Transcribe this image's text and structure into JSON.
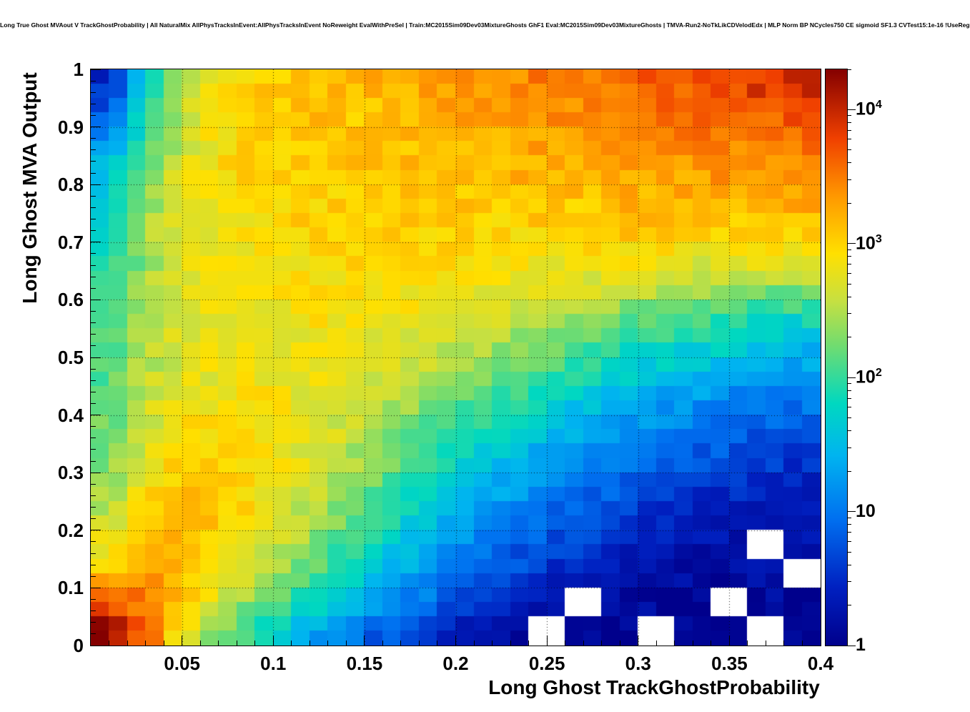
{
  "chart_data": {
    "type": "heatmap",
    "title": "Long True Ghost MVAout V TrackGhostProbability | All NaturalMix AllPhysTracksInEvent:AllPhysTracksInEvent NoReweight EvalWithPreSel | Train:MC2015Sim09Dev03MixtureGhosts GhF1 Eval:MC2015Sim09Dev03MixtureGhosts | TMVA-Run2-NoTkLikCDVelodEdx | MLP Norm BP NCycles750 CE sigmoid SF1.3 CVTest15:1e-16 !UseReg",
    "xlabel": "Long Ghost TrackGhostProbability",
    "ylabel": "Long Ghost MVA Output",
    "xlim": [
      0,
      0.4
    ],
    "ylim": [
      0,
      1
    ],
    "zlim": [
      1,
      20000
    ],
    "zscale": "log",
    "grid_on": true,
    "x_ticks": [
      {
        "value": 0.05,
        "label": "0.05"
      },
      {
        "value": 0.1,
        "label": "0.1"
      },
      {
        "value": 0.15,
        "label": "0.15"
      },
      {
        "value": 0.2,
        "label": "0.2"
      },
      {
        "value": 0.25,
        "label": "0.25"
      },
      {
        "value": 0.3,
        "label": "0.3"
      },
      {
        "value": 0.35,
        "label": "0.35"
      },
      {
        "value": 0.4,
        "label": "0.4"
      }
    ],
    "y_ticks": [
      {
        "value": 0.0,
        "label": "0"
      },
      {
        "value": 0.1,
        "label": "0.1"
      },
      {
        "value": 0.2,
        "label": "0.2"
      },
      {
        "value": 0.3,
        "label": "0.3"
      },
      {
        "value": 0.4,
        "label": "0.4"
      },
      {
        "value": 0.5,
        "label": "0.5"
      },
      {
        "value": 0.6,
        "label": "0.6"
      },
      {
        "value": 0.7,
        "label": "0.7"
      },
      {
        "value": 0.8,
        "label": "0.8"
      },
      {
        "value": 0.9,
        "label": "0.9"
      },
      {
        "value": 1.0,
        "label": "1"
      }
    ],
    "z_ticks": [
      {
        "value": 1,
        "label": "1",
        "sup": ""
      },
      {
        "value": 10,
        "label": "10",
        "sup": ""
      },
      {
        "value": 100,
        "label": "10",
        "sup": "2"
      },
      {
        "value": 1000,
        "label": "10",
        "sup": "3"
      },
      {
        "value": 10000,
        "label": "10",
        "sup": "4"
      }
    ],
    "palette_stops": [
      [
        0.0,
        "#00008c"
      ],
      [
        0.1,
        "#0020c0"
      ],
      [
        0.22,
        "#0070f0"
      ],
      [
        0.33,
        "#00b4f0"
      ],
      [
        0.42,
        "#00d8c0"
      ],
      [
        0.52,
        "#70dc70"
      ],
      [
        0.6,
        "#c8e040"
      ],
      [
        0.68,
        "#ffe000"
      ],
      [
        0.78,
        "#ff9800"
      ],
      [
        0.88,
        "#f04000"
      ],
      [
        1.0,
        "#840000"
      ]
    ],
    "grid_cols": 20,
    "grid_rows": 20,
    "value_note": "log10 of bin count per cell; rows ordered top (y=1) to bottom (y=0); null = empty (white) bin",
    "log10_counts_rows_top_to_bottom": [
      [
        0.5,
        1.6,
        2.4,
        2.8,
        3.0,
        3.1,
        3.1,
        3.2,
        3.2,
        3.3,
        3.4,
        3.4,
        3.5,
        3.5,
        3.6,
        3.7,
        3.7,
        3.8,
        3.9,
        4.0
      ],
      [
        0.8,
        1.9,
        2.6,
        2.9,
        3.0,
        3.1,
        3.1,
        3.1,
        3.2,
        3.2,
        3.3,
        3.3,
        3.4,
        3.4,
        3.5,
        3.5,
        3.6,
        3.6,
        3.7,
        3.7
      ],
      [
        1.2,
        2.1,
        2.6,
        2.9,
        3.0,
        3.0,
        3.1,
        3.1,
        3.1,
        3.2,
        3.2,
        3.2,
        3.3,
        3.3,
        3.4,
        3.4,
        3.5,
        3.5,
        3.5,
        3.6
      ],
      [
        1.5,
        2.2,
        2.7,
        2.9,
        3.0,
        3.0,
        3.0,
        3.1,
        3.1,
        3.1,
        3.1,
        3.2,
        3.2,
        3.2,
        3.3,
        3.3,
        3.3,
        3.4,
        3.4,
        3.4
      ],
      [
        1.7,
        2.3,
        2.7,
        2.9,
        3.0,
        3.0,
        3.0,
        3.0,
        3.1,
        3.1,
        3.1,
        3.1,
        3.1,
        3.1,
        3.2,
        3.2,
        3.2,
        3.2,
        3.3,
        3.3
      ],
      [
        1.8,
        2.4,
        2.7,
        2.9,
        2.9,
        3.0,
        3.0,
        3.0,
        3.0,
        3.0,
        3.0,
        3.0,
        3.0,
        3.0,
        3.1,
        3.1,
        3.0,
        3.0,
        3.1,
        3.1
      ],
      [
        1.9,
        2.4,
        2.7,
        2.8,
        2.9,
        2.9,
        3.0,
        3.0,
        3.0,
        3.0,
        2.9,
        2.9,
        2.9,
        2.9,
        2.9,
        2.8,
        2.8,
        2.8,
        2.8,
        2.8
      ],
      [
        2.0,
        2.4,
        2.7,
        2.8,
        2.9,
        2.9,
        2.9,
        2.9,
        2.9,
        2.9,
        2.8,
        2.8,
        2.7,
        2.7,
        2.6,
        2.6,
        2.5,
        2.5,
        2.4,
        2.4
      ],
      [
        2.0,
        2.5,
        2.7,
        2.8,
        2.8,
        2.8,
        2.9,
        2.9,
        2.8,
        2.8,
        2.7,
        2.6,
        2.5,
        2.4,
        2.3,
        2.2,
        2.1,
        2.0,
        1.9,
        1.9
      ],
      [
        2.1,
        2.5,
        2.7,
        2.8,
        2.8,
        2.8,
        2.8,
        2.8,
        2.7,
        2.6,
        2.5,
        2.4,
        2.3,
        2.2,
        2.0,
        1.9,
        1.8,
        1.7,
        1.6,
        1.5
      ],
      [
        2.1,
        2.5,
        2.7,
        2.8,
        2.8,
        2.8,
        2.8,
        2.7,
        2.6,
        2.5,
        2.3,
        2.2,
        2.0,
        1.9,
        1.7,
        1.6,
        1.5,
        1.4,
        1.3,
        1.3
      ],
      [
        2.2,
        2.6,
        2.8,
        2.8,
        2.9,
        2.8,
        2.7,
        2.6,
        2.5,
        2.3,
        2.1,
        2.0,
        1.8,
        1.6,
        1.5,
        1.3,
        1.2,
        1.1,
        1.0,
        1.0
      ],
      [
        2.2,
        2.6,
        2.9,
        3.0,
        2.9,
        2.8,
        2.7,
        2.5,
        2.3,
        2.1,
        1.9,
        1.7,
        1.5,
        1.4,
        1.2,
        1.1,
        1.0,
        0.9,
        0.8,
        0.8
      ],
      [
        2.3,
        2.7,
        3.0,
        3.0,
        2.9,
        2.8,
        2.6,
        2.4,
        2.2,
        2.0,
        1.7,
        1.5,
        1.3,
        1.2,
        1.0,
        0.9,
        0.8,
        0.7,
        0.6,
        0.6
      ],
      [
        2.4,
        2.9,
        3.1,
        3.1,
        2.9,
        2.7,
        2.5,
        2.3,
        2.0,
        1.8,
        1.5,
        1.3,
        1.1,
        1.0,
        0.8,
        0.7,
        0.6,
        0.5,
        0.5,
        0.4
      ],
      [
        2.6,
        3.0,
        3.2,
        3.1,
        2.9,
        2.6,
        2.4,
        2.1,
        1.8,
        1.6,
        1.3,
        1.1,
        0.9,
        0.8,
        0.6,
        0.5,
        0.4,
        0.4,
        0.3,
        0.3
      ],
      [
        2.8,
        3.2,
        3.2,
        3.0,
        2.8,
        2.5,
        2.2,
        1.9,
        1.6,
        1.3,
        1.1,
        0.9,
        0.7,
        0.6,
        0.4,
        0.3,
        0.3,
        0.2,
        null,
        0.2
      ],
      [
        3.1,
        3.4,
        3.2,
        2.9,
        2.6,
        2.3,
        2.0,
        1.7,
        1.4,
        1.1,
        0.9,
        0.7,
        0.5,
        0.4,
        0.3,
        0.2,
        0.2,
        0.1,
        0.2,
        null
      ],
      [
        3.6,
        3.5,
        3.1,
        2.7,
        2.3,
        2.0,
        1.7,
        1.4,
        1.1,
        0.9,
        0.6,
        0.5,
        0.3,
        null,
        0.2,
        0.1,
        0.1,
        null,
        0.1,
        0.1
      ],
      [
        4.3,
        3.6,
        2.8,
        2.3,
        1.9,
        1.5,
        1.2,
        0.9,
        0.7,
        0.5,
        0.3,
        0.2,
        null,
        0.1,
        0.0,
        null,
        0.1,
        0.0,
        null,
        0.0
      ]
    ]
  }
}
